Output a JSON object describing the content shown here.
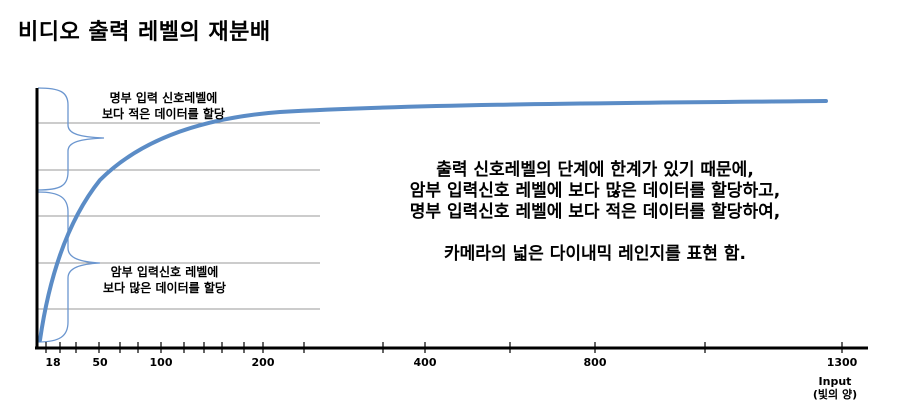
{
  "title": "비디오 출력 레벨의 재분배",
  "brace_top_label": [
    "명부 입력 신호레벨에",
    "보다 적은 데이터를 할당"
  ],
  "brace_bottom_label": [
    "암부 입력신호 레벨에",
    "보다 많은 데이터를 할당"
  ],
  "main_text": {
    "line1": "출력 신호레벨의 단계에  한계가 있기 때문에,",
    "line2": "암부 입력신호 레벨에 보다 많은 데이터를 할당하고,",
    "line3": "명부 입력신호 레벨에 보다 적은 데이터를 할당하여,",
    "line4": "카메라의 넓은 다이내믹 레인지를 표현 함."
  },
  "x_axis": {
    "tick_labels": [
      "18",
      "50",
      "100",
      "200",
      "400",
      "800",
      "1300"
    ],
    "caption_line1": "Input",
    "caption_line2": "(빛의 양)"
  },
  "colors": {
    "curve": "#5b8cc6",
    "brace": "#6b96cf",
    "grid": "#9a9a9a",
    "axis": "#000000"
  }
}
